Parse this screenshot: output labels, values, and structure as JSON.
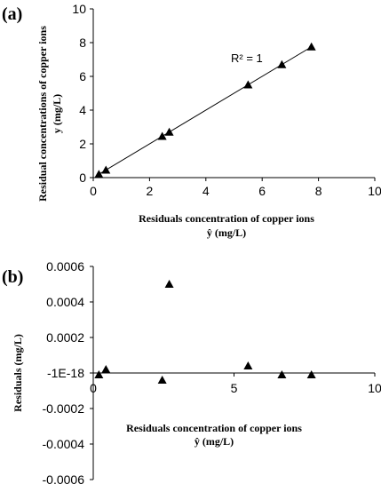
{
  "chart_data": [
    {
      "panel_label": "(a)",
      "type": "scatter",
      "xlabel_line1": "Residuals concentration of copper ions",
      "xlabel_line2": "ŷ (mg/L)",
      "ylabel_line1": "Residual concentrations of copper  ions",
      "ylabel_line2": "y  (mg/L)",
      "xlim": [
        0,
        10
      ],
      "ylim": [
        0,
        10
      ],
      "xticks": [
        "0",
        "2",
        "4",
        "6",
        "8",
        "10"
      ],
      "yticks": [
        "0",
        "2",
        "4",
        "6",
        "8",
        "10"
      ],
      "annotation": "R² = 1",
      "trendline": true,
      "x": [
        0.2,
        0.45,
        2.45,
        2.7,
        5.5,
        6.7,
        7.75
      ],
      "y": [
        0.2,
        0.45,
        2.45,
        2.7,
        5.5,
        6.7,
        7.75
      ]
    },
    {
      "panel_label": "(b)",
      "type": "scatter",
      "xlabel_line1": "Residuals concentration of copper ions",
      "xlabel_line2": "ŷ (mg/L)",
      "ylabel": "Residuals  (mg/L)",
      "xlim": [
        0,
        10
      ],
      "ylim": [
        -0.0006,
        0.0006
      ],
      "xticks": [
        "0",
        "5",
        "10"
      ],
      "yticks": [
        "0.0006",
        "0.0004",
        "0.0002",
        "-1E-18",
        "-0.0002",
        "-0.0004",
        "-0.0006"
      ],
      "x": [
        0.2,
        0.45,
        2.45,
        2.7,
        5.5,
        6.7,
        7.75
      ],
      "y": [
        -1e-05,
        2e-05,
        -4e-05,
        0.0005,
        4e-05,
        -1e-05,
        -1e-05
      ]
    }
  ]
}
